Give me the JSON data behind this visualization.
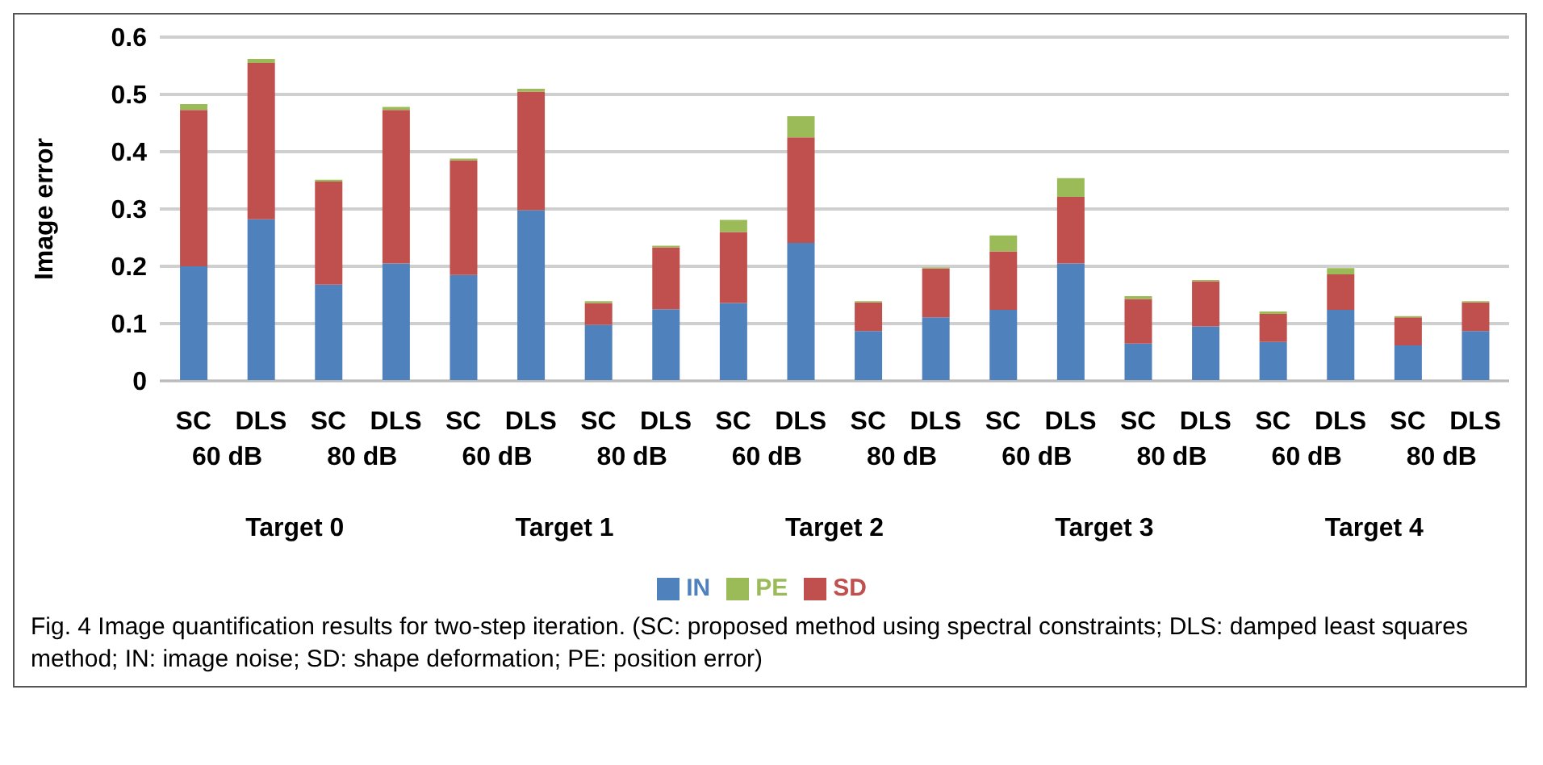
{
  "chart_data": {
    "type": "bar",
    "stacked": true,
    "ylabel": "Image error",
    "categories": [
      "SC",
      "DLS",
      "SC",
      "DLS",
      "SC",
      "DLS",
      "SC",
      "DLS",
      "SC",
      "DLS",
      "SC",
      "DLS",
      "SC",
      "DLS",
      "SC",
      "DLS",
      "SC",
      "DLS",
      "SC",
      "DLS"
    ],
    "series": [
      {
        "name": "IN",
        "color": "#4f81bd",
        "values": [
          0.2,
          0.282,
          0.168,
          0.205,
          0.185,
          0.298,
          0.098,
          0.125,
          0.136,
          0.241,
          0.087,
          0.111,
          0.124,
          0.205,
          0.065,
          0.095,
          0.068,
          0.124,
          0.062,
          0.087
        ]
      },
      {
        "name": "SD",
        "color": "#c0504d",
        "values": [
          0.273,
          0.273,
          0.18,
          0.268,
          0.2,
          0.207,
          0.038,
          0.108,
          0.124,
          0.184,
          0.05,
          0.085,
          0.102,
          0.116,
          0.078,
          0.079,
          0.049,
          0.062,
          0.049,
          0.05
        ]
      },
      {
        "name": "PE",
        "color": "#9bbb59",
        "values": [
          0.01,
          0.007,
          0.003,
          0.005,
          0.003,
          0.005,
          0.003,
          0.003,
          0.021,
          0.037,
          0.002,
          0.002,
          0.028,
          0.033,
          0.005,
          0.002,
          0.004,
          0.011,
          0.002,
          0.002
        ]
      }
    ],
    "ylim": [
      0,
      0.6
    ],
    "yticks": [
      0,
      0.1,
      0.2,
      0.3,
      0.4,
      0.5,
      0.6
    ],
    "grid": "y",
    "legend": "bottom",
    "annotations": [
      "60 dB",
      "80 dB",
      "60 dB",
      "80 dB",
      "60 dB",
      "80 dB",
      "60 dB",
      "80 dB",
      "60 dB",
      "80 dB",
      "Target 0",
      "Target 1",
      "Target 2",
      "Target 3",
      "Target 4",
      "Fig. 4  Image quantification results for two-step iteration. (SC: proposed method using spectral constraints; DLS: damped least squares method; IN: image noise; SD: shape deformation; PE: position error)"
    ]
  }
}
